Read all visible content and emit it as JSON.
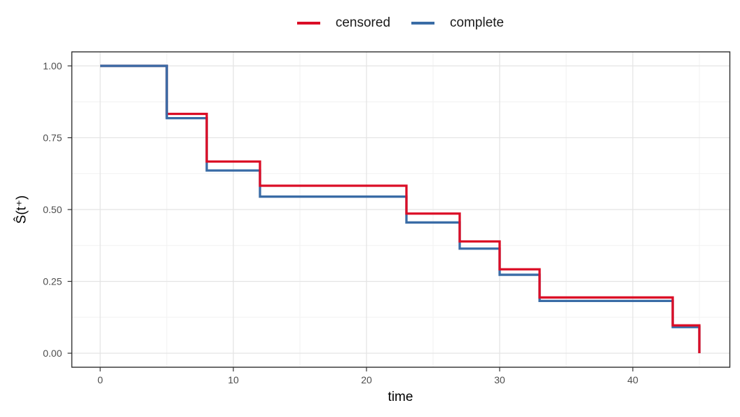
{
  "figure": {
    "background": "#FFFFFF"
  },
  "chart_data": {
    "type": "line",
    "subtype": "step function (Kaplan-Meier survival curves)",
    "title": "",
    "xlabel": "time",
    "ylabel": "Ŝ(t⁺)",
    "xlim": [
      -2.25,
      47.25
    ],
    "ylim": [
      -0.05,
      1.05
    ],
    "grid": "major and minor gridlines, light gray on white panel, dark panel border",
    "legend_position": "top-center horizontal",
    "x_ticks": [
      {
        "v": 0,
        "label": "0"
      },
      {
        "v": 10,
        "label": "10"
      },
      {
        "v": 20,
        "label": "20"
      },
      {
        "v": 30,
        "label": "30"
      },
      {
        "v": 40,
        "label": "40"
      }
    ],
    "y_ticks": [
      {
        "v": 0.0,
        "label": "0.00"
      },
      {
        "v": 0.25,
        "label": "0.25"
      },
      {
        "v": 0.5,
        "label": "0.50"
      },
      {
        "v": 0.75,
        "label": "0.75"
      },
      {
        "v": 1.0,
        "label": "1.00"
      }
    ],
    "x_minor_gridlines": [
      5,
      15,
      25,
      35,
      45
    ],
    "y_minor_gridlines": [
      0.125,
      0.375,
      0.625,
      0.875
    ],
    "step_times": [
      0,
      5,
      8,
      12,
      23,
      27,
      30,
      33,
      43,
      45
    ],
    "series": [
      {
        "name": "censored",
        "color": "#DB0D26",
        "values": [
          1.0,
          0.833,
          0.667,
          0.583,
          0.486,
          0.389,
          0.292,
          0.194,
          0.097,
          0.0
        ]
      },
      {
        "name": "complete",
        "color": "#3A6CA6",
        "values": [
          1.0,
          0.818,
          0.636,
          0.545,
          0.455,
          0.364,
          0.273,
          0.182,
          0.091,
          0.0
        ]
      }
    ],
    "colors": {
      "grid_major": "#E4E4E4",
      "grid_minor": "#F1F1F1",
      "panel_border": "#2F2F2F",
      "tick": "#333333",
      "tick_label": "#4D4D4D",
      "axis_title": "#000000",
      "legend_text": "#1A1A1A"
    }
  }
}
